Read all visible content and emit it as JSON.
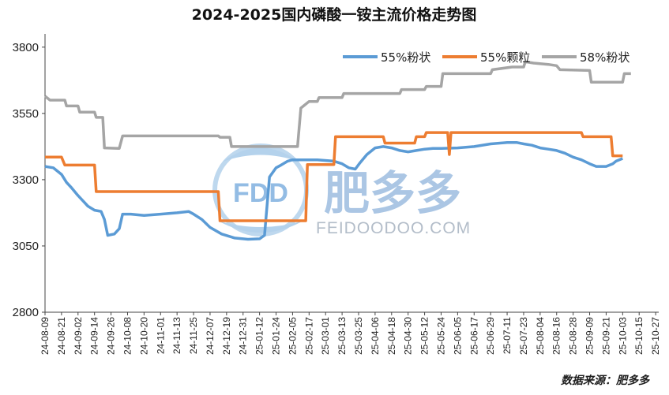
{
  "chart_data": {
    "type": "line",
    "title": "2024-2025国内磷酸一铵主流价格走势图",
    "ylim": [
      2800,
      3850
    ],
    "yticks": [
      2800,
      3050,
      3300,
      3550,
      3800
    ],
    "grid": false,
    "legend_position": "top-right",
    "xlabels": [
      "24-08-09",
      "24-08-21",
      "24-09-02",
      "24-09-14",
      "24-09-26",
      "24-10-08",
      "24-10-20",
      "24-11-01",
      "24-11-13",
      "24-11-25",
      "24-12-07",
      "24-12-19",
      "24-12-31",
      "25-01-12",
      "25-01-24",
      "25-02-05",
      "25-02-17",
      "25-03-01",
      "25-03-13",
      "25-03-25",
      "25-04-06",
      "25-04-18",
      "25-04-30",
      "25-05-12",
      "25-05-24",
      "25-06-05",
      "25-06-17",
      "25-06-29",
      "25-07-11",
      "25-07-23",
      "25-08-04",
      "25-08-16",
      "25-08-28",
      "25-09-09",
      "25-09-21",
      "25-10-03",
      "25-10-15",
      "25-10-27"
    ],
    "series": [
      {
        "name": "55%粉状",
        "color": "#5b9bd5",
        "points": [
          [
            0,
            3350
          ],
          [
            0.5,
            3345
          ],
          [
            1,
            3320
          ],
          [
            1.3,
            3290
          ],
          [
            1.6,
            3270
          ],
          [
            2,
            3240
          ],
          [
            2.3,
            3220
          ],
          [
            2.6,
            3200
          ],
          [
            3,
            3185
          ],
          [
            3.4,
            3180
          ],
          [
            3.6,
            3150
          ],
          [
            3.8,
            3090
          ],
          [
            4.2,
            3095
          ],
          [
            4.5,
            3115
          ],
          [
            4.7,
            3170
          ],
          [
            5.2,
            3170
          ],
          [
            6,
            3165
          ],
          [
            7,
            3170
          ],
          [
            8,
            3175
          ],
          [
            8.7,
            3180
          ],
          [
            9,
            3170
          ],
          [
            9.5,
            3150
          ],
          [
            10,
            3120
          ],
          [
            10.7,
            3095
          ],
          [
            11.5,
            3080
          ],
          [
            12.3,
            3075
          ],
          [
            13,
            3077
          ],
          [
            13.3,
            3090
          ],
          [
            13.6,
            3310
          ],
          [
            14,
            3345
          ],
          [
            14.3,
            3355
          ],
          [
            14.7,
            3370
          ],
          [
            15,
            3375
          ],
          [
            15.5,
            3375
          ],
          [
            16.5,
            3375
          ],
          [
            17.5,
            3370
          ],
          [
            18,
            3360
          ],
          [
            18.4,
            3345
          ],
          [
            18.8,
            3340
          ],
          [
            19.1,
            3365
          ],
          [
            19.5,
            3395
          ],
          [
            20,
            3420
          ],
          [
            20.5,
            3425
          ],
          [
            21,
            3420
          ],
          [
            21.5,
            3410
          ],
          [
            22,
            3405
          ],
          [
            22.5,
            3410
          ],
          [
            23,
            3415
          ],
          [
            23.5,
            3418
          ],
          [
            24,
            3418
          ],
          [
            25,
            3420
          ],
          [
            26,
            3425
          ],
          [
            27,
            3435
          ],
          [
            28,
            3440
          ],
          [
            28.6,
            3440
          ],
          [
            29,
            3435
          ],
          [
            29.5,
            3430
          ],
          [
            30,
            3420
          ],
          [
            30.5,
            3415
          ],
          [
            31,
            3410
          ],
          [
            31.5,
            3400
          ],
          [
            32,
            3385
          ],
          [
            32.5,
            3375
          ],
          [
            33,
            3360
          ],
          [
            33.4,
            3350
          ],
          [
            34,
            3350
          ],
          [
            34.4,
            3360
          ],
          [
            34.6,
            3370
          ],
          [
            35,
            3380
          ]
        ]
      },
      {
        "name": "55%颗粒",
        "color": "#ed7d31",
        "points": [
          [
            0,
            3385
          ],
          [
            1,
            3385
          ],
          [
            1.2,
            3355
          ],
          [
            3,
            3355
          ],
          [
            3.1,
            3255
          ],
          [
            10.5,
            3255
          ],
          [
            10.6,
            3145
          ],
          [
            15.8,
            3145
          ],
          [
            15.9,
            3357
          ],
          [
            17.5,
            3357
          ],
          [
            17.6,
            3462
          ],
          [
            20.5,
            3462
          ],
          [
            20.6,
            3438
          ],
          [
            22.4,
            3438
          ],
          [
            22.5,
            3462
          ],
          [
            23,
            3462
          ],
          [
            23.1,
            3478
          ],
          [
            24.4,
            3478
          ],
          [
            24.5,
            3395
          ],
          [
            24.6,
            3478
          ],
          [
            32.5,
            3478
          ],
          [
            32.6,
            3462
          ],
          [
            34.3,
            3462
          ],
          [
            34.4,
            3390
          ],
          [
            35,
            3390
          ]
        ]
      },
      {
        "name": "58%粉状",
        "color": "#a5a5a5",
        "points": [
          [
            0,
            3615
          ],
          [
            0.3,
            3600
          ],
          [
            1.2,
            3600
          ],
          [
            1.3,
            3578
          ],
          [
            2,
            3578
          ],
          [
            2.1,
            3555
          ],
          [
            3,
            3555
          ],
          [
            3.1,
            3535
          ],
          [
            3.5,
            3535
          ],
          [
            3.6,
            3420
          ],
          [
            4.5,
            3418
          ],
          [
            4.7,
            3465
          ],
          [
            8,
            3465
          ],
          [
            10.5,
            3465
          ],
          [
            10.6,
            3460
          ],
          [
            11.2,
            3460
          ],
          [
            11.3,
            3425
          ],
          [
            15.3,
            3425
          ],
          [
            15.5,
            3570
          ],
          [
            16,
            3595
          ],
          [
            16.5,
            3595
          ],
          [
            16.6,
            3610
          ],
          [
            18,
            3610
          ],
          [
            18.1,
            3625
          ],
          [
            20,
            3625
          ],
          [
            21.5,
            3625
          ],
          [
            21.6,
            3640
          ],
          [
            23,
            3640
          ],
          [
            23.1,
            3652
          ],
          [
            24,
            3652
          ],
          [
            24.1,
            3700
          ],
          [
            27,
            3700
          ],
          [
            27.1,
            3715
          ],
          [
            28.3,
            3725
          ],
          [
            29,
            3725
          ],
          [
            29.1,
            3745
          ],
          [
            29.6,
            3740
          ],
          [
            30.5,
            3735
          ],
          [
            31,
            3730
          ],
          [
            31.2,
            3715
          ],
          [
            33,
            3712
          ],
          [
            33.1,
            3668
          ],
          [
            35,
            3668
          ],
          [
            35.1,
            3700
          ],
          [
            35.5,
            3700
          ]
        ]
      }
    ],
    "source": "数据来源：肥多多"
  },
  "watermark": {
    "badge": "FDD",
    "brand_cn": "肥多多",
    "brand_en": "FEIDOODOO.COM"
  }
}
